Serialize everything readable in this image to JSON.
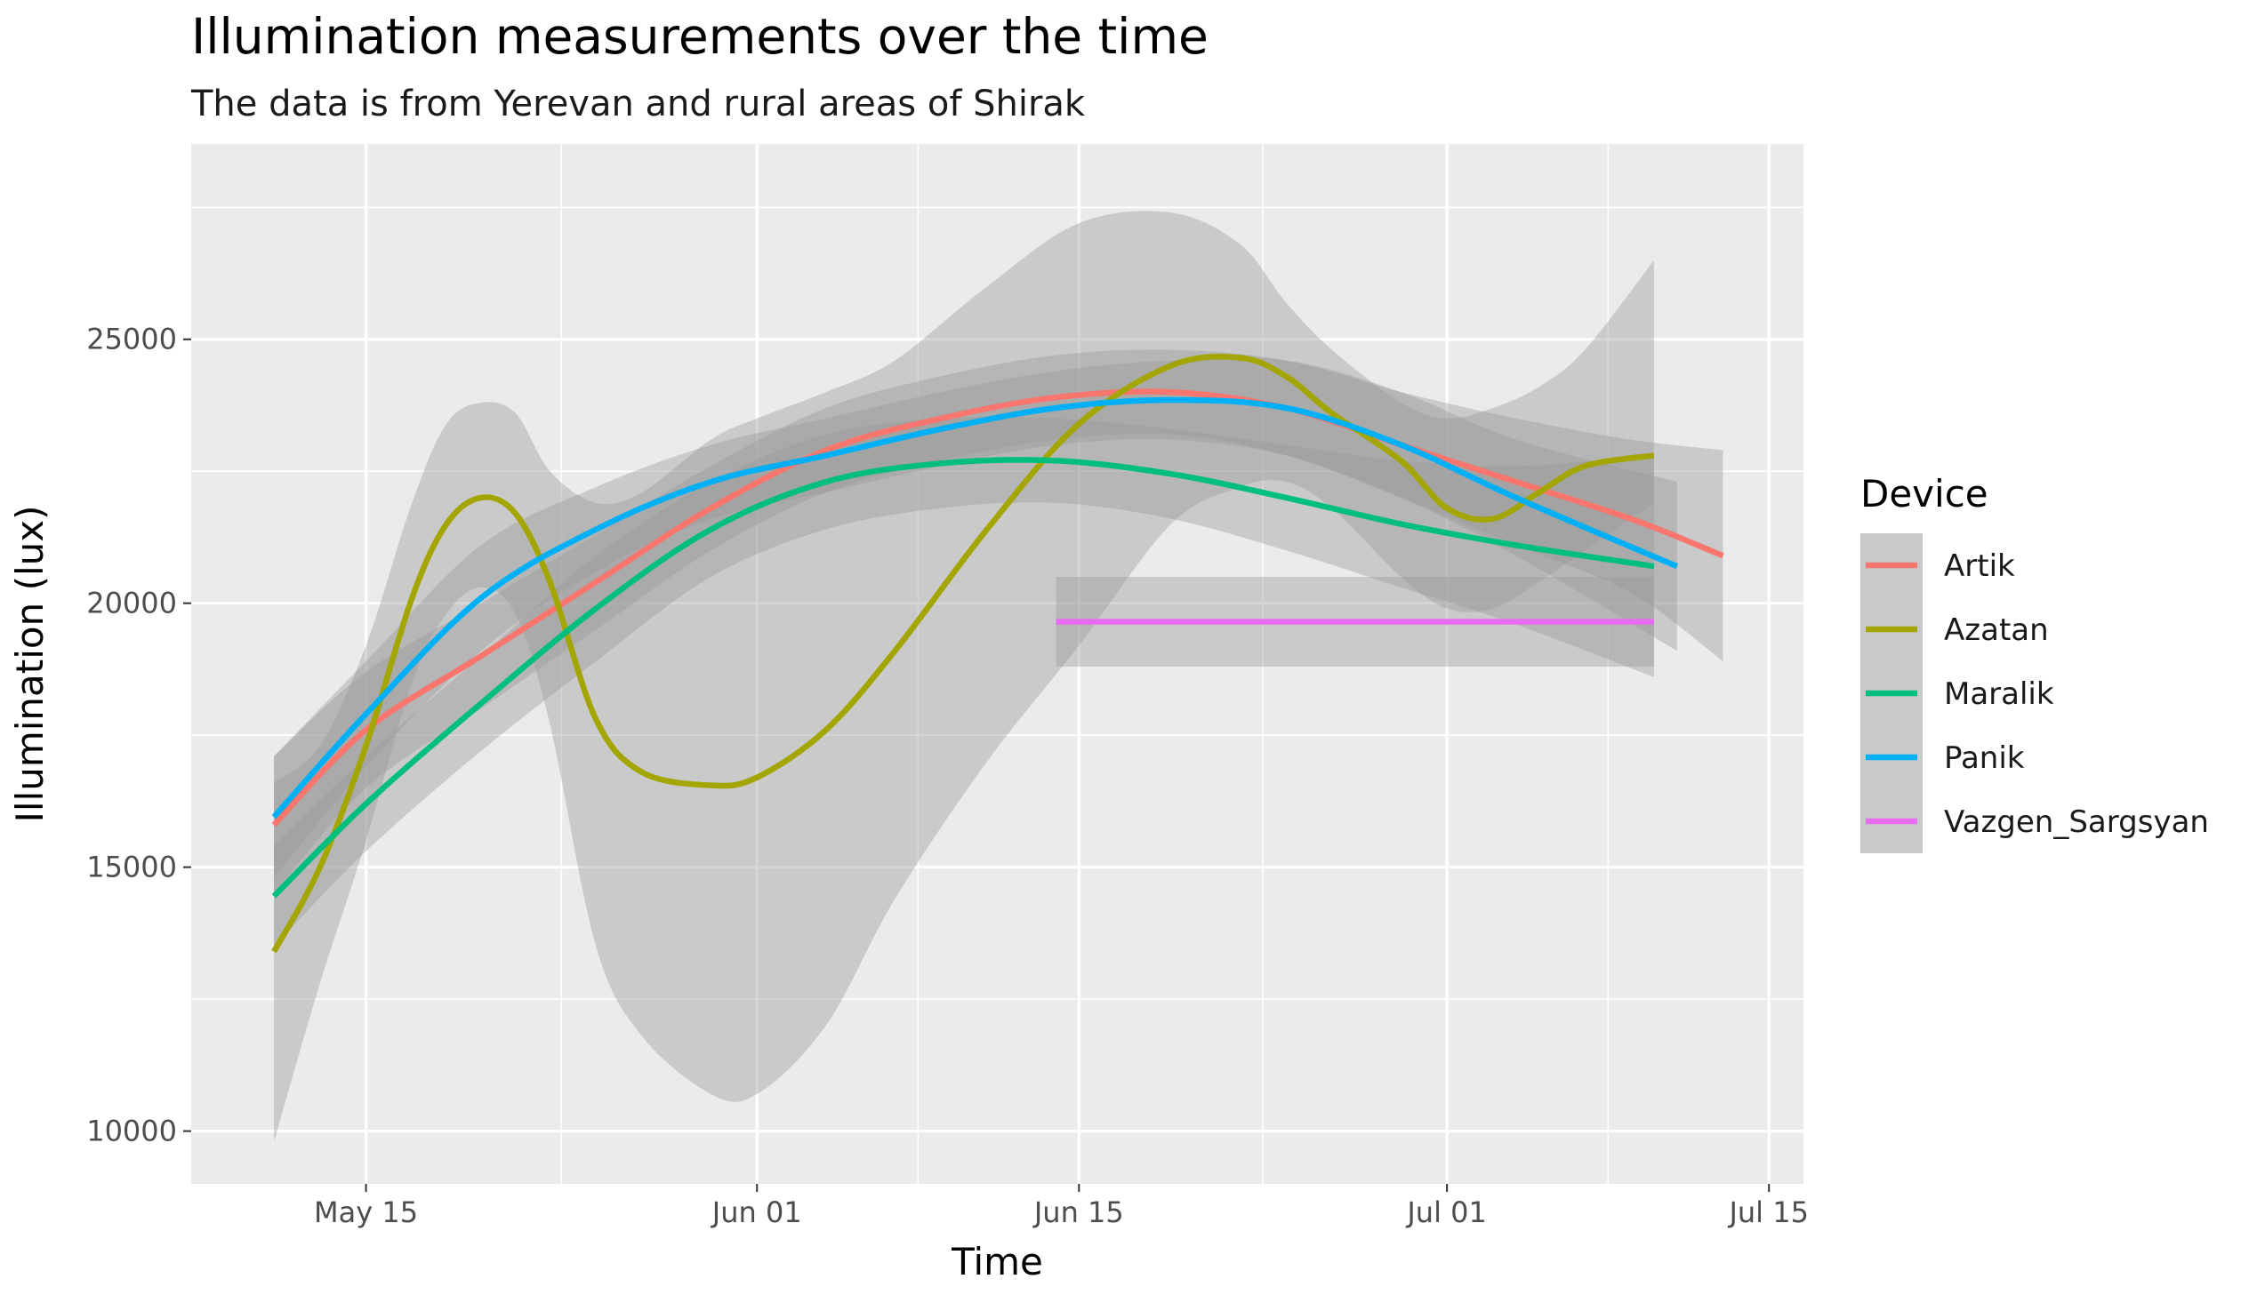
{
  "chart_data": {
    "type": "line",
    "title": "Illumination measurements over the time",
    "subtitle": "The data is from Yerevan and rural areas of Shirak",
    "xlabel": "Time",
    "ylabel": "Illumination (lux)",
    "x_ticks": [
      "May 15",
      "Jun 01",
      "Jun 15",
      "Jul 01",
      "Jul 15"
    ],
    "x_tick_days": [
      15,
      32,
      46,
      62,
      76
    ],
    "x_range_days": [
      7.4,
      77.5
    ],
    "y_ticks": [
      10000,
      15000,
      20000,
      25000
    ],
    "ylim": [
      9000,
      28700
    ],
    "grid": true,
    "legend_title": "Device",
    "legend_position": "right",
    "series": [
      {
        "name": "Artik",
        "color": "#F8766D",
        "x": [
          11,
          15,
          20,
          25,
          30,
          35,
          40,
          45,
          50,
          55,
          60,
          65,
          70,
          74
        ],
        "y": [
          15800,
          17600,
          19000,
          20400,
          21800,
          22900,
          23500,
          23900,
          24000,
          23700,
          23000,
          22300,
          21600,
          20900
        ],
        "lower": [
          14500,
          16500,
          18000,
          19500,
          21000,
          22100,
          22700,
          23100,
          23200,
          22800,
          22000,
          21100,
          20200,
          18900
        ],
        "upper": [
          17100,
          18700,
          20000,
          21300,
          22600,
          23700,
          24300,
          24700,
          24800,
          24600,
          24000,
          23500,
          23100,
          22900
        ]
      },
      {
        "name": "Azatan",
        "color": "#A3A500",
        "x": [
          11,
          13,
          15,
          17,
          18.5,
          20,
          21.5,
          23,
          25,
          27,
          30,
          32,
          35,
          38,
          42,
          46,
          50,
          53,
          55,
          57,
          60,
          62,
          64,
          66,
          68,
          71
        ],
        "y": [
          13400,
          15000,
          17300,
          20100,
          21500,
          22000,
          21700,
          20400,
          17800,
          16800,
          16550,
          16700,
          17600,
          19100,
          21400,
          23400,
          24500,
          24650,
          24300,
          23600,
          22700,
          21800,
          21600,
          22100,
          22600,
          22800
        ],
        "lower": [
          9800,
          12800,
          15500,
          18500,
          19800,
          20300,
          19800,
          17700,
          13500,
          11800,
          10700,
          10700,
          12000,
          14400,
          17000,
          19200,
          21500,
          22200,
          22300,
          21800,
          20500,
          19900,
          19900,
          20400,
          21000,
          21900
        ],
        "upper": [
          16600,
          17300,
          19200,
          21900,
          23400,
          23800,
          23600,
          22500,
          21900,
          22100,
          23100,
          23500,
          24000,
          24600,
          26000,
          27200,
          27400,
          26800,
          25700,
          24800,
          23800,
          23500,
          23700,
          24100,
          24800,
          26500
        ]
      },
      {
        "name": "Maralik",
        "color": "#00BF7D",
        "x": [
          11,
          15,
          20,
          25,
          30,
          35,
          40,
          45,
          50,
          55,
          60,
          65,
          71
        ],
        "y": [
          14450,
          16200,
          18100,
          19900,
          21400,
          22300,
          22650,
          22700,
          22450,
          22000,
          21500,
          21100,
          20700
        ],
        "lower": [
          13500,
          15300,
          17200,
          18900,
          20500,
          21400,
          21800,
          21900,
          21600,
          21000,
          20300,
          19600,
          18600
        ],
        "upper": [
          15400,
          17100,
          19000,
          20900,
          22300,
          23200,
          23500,
          23500,
          23300,
          23000,
          22700,
          22600,
          22800
        ]
      },
      {
        "name": "Panik",
        "color": "#00B0F6",
        "x": [
          11,
          15,
          20,
          25,
          30,
          35,
          40,
          45,
          50,
          55,
          60,
          65,
          72
        ],
        "y": [
          15950,
          17900,
          20100,
          21400,
          22300,
          22800,
          23300,
          23700,
          23850,
          23700,
          23000,
          22000,
          20700
        ],
        "lower": [
          14800,
          16900,
          19100,
          20600,
          21600,
          22100,
          22600,
          23000,
          23100,
          22800,
          22000,
          20900,
          19100
        ],
        "upper": [
          17100,
          18900,
          21100,
          22200,
          23000,
          23500,
          24000,
          24400,
          24600,
          24600,
          24000,
          23100,
          22300
        ]
      },
      {
        "name": "Vazgen_Sargsyan",
        "color": "#E76BF3",
        "x": [
          45,
          71
        ],
        "y": [
          19650,
          19650
        ],
        "lower": [
          18800,
          18800
        ],
        "upper": [
          20500,
          20500
        ]
      }
    ]
  }
}
